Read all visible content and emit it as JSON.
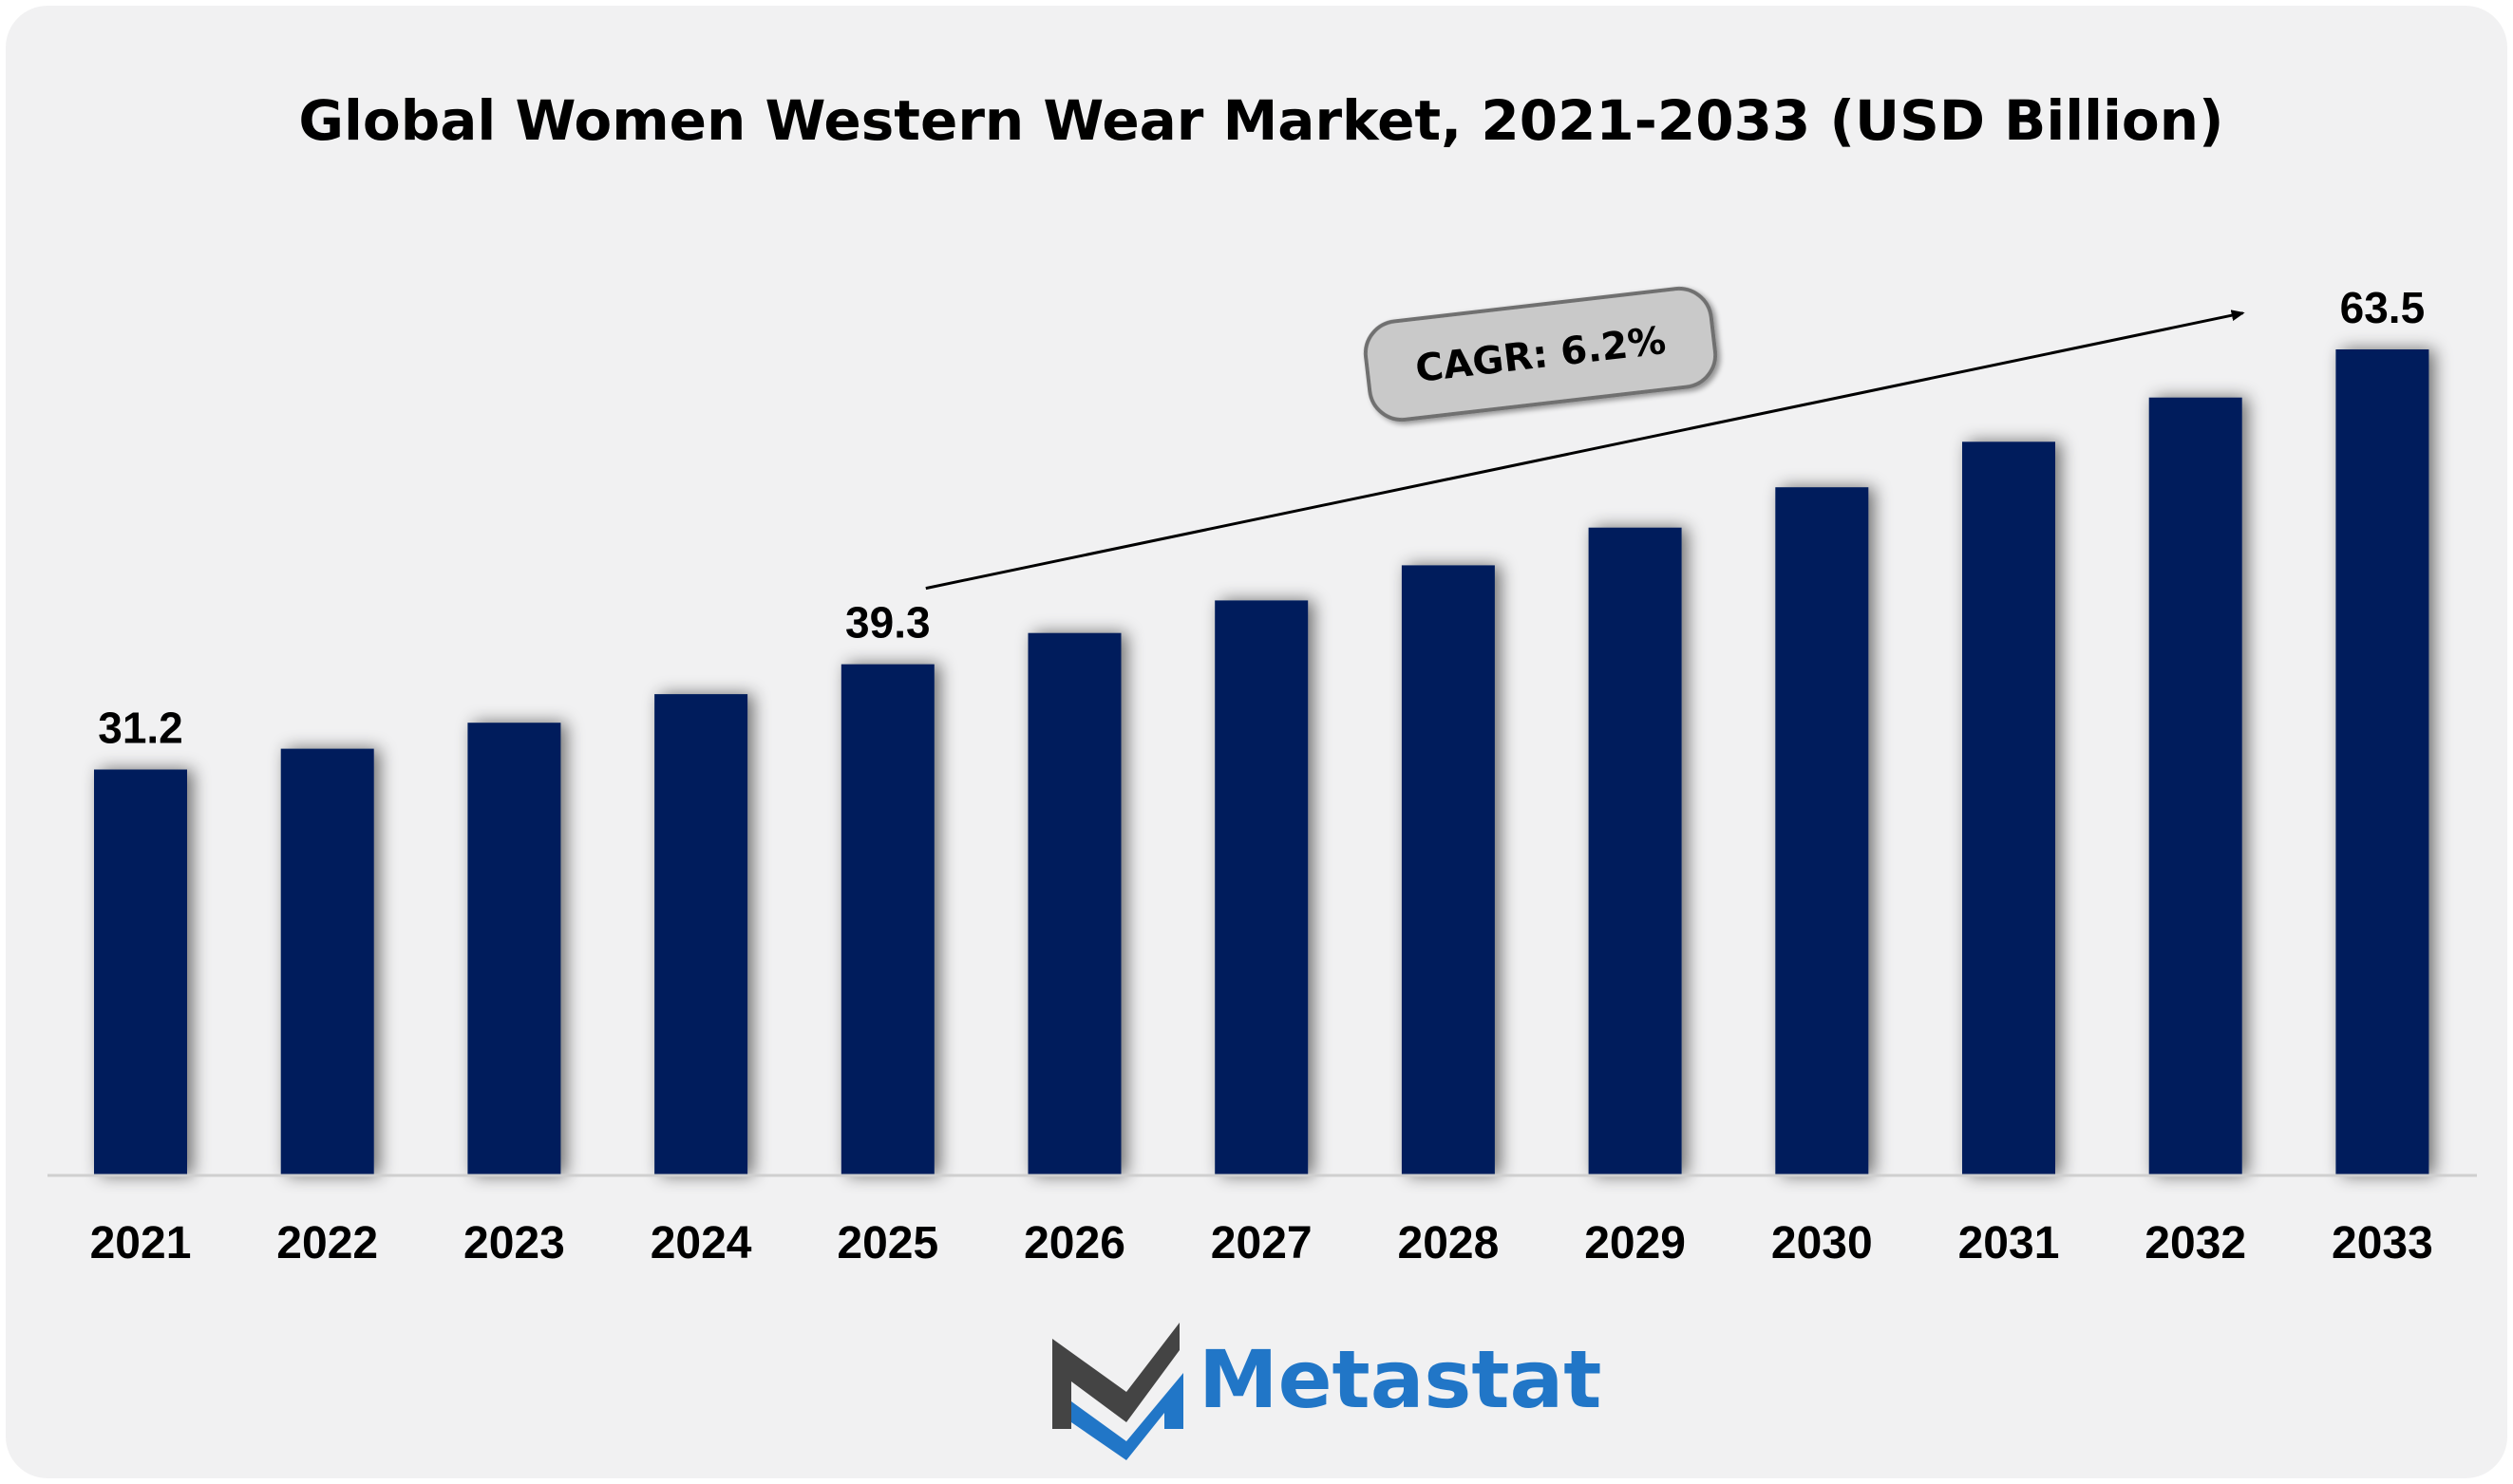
{
  "chart_data": {
    "type": "bar",
    "title": "Global Women Western Wear Market, 2021-2033 (USD Billion)",
    "xlabel": "",
    "ylabel": "",
    "categories": [
      "2021",
      "2022",
      "2023",
      "2024",
      "2025",
      "2026",
      "2027",
      "2028",
      "2029",
      "2030",
      "2031",
      "2032",
      "2033"
    ],
    "values": [
      31.2,
      32.8,
      34.8,
      37.0,
      39.3,
      41.7,
      44.2,
      46.9,
      49.8,
      52.9,
      56.4,
      59.8,
      63.5
    ],
    "data_labels": {
      "2021": "31.2",
      "2025": "39.3",
      "2033": "63.5"
    },
    "ylim": [
      0,
      63.5
    ],
    "grid": false,
    "bar_color": "#021f5c",
    "annotation": {
      "label": "CAGR: 6.2%",
      "from_category": "2025",
      "to_category": "2032"
    }
  },
  "branding": {
    "name": "Metastat",
    "color": "#2176c7",
    "logo_icon": "metastat-m-logo-icon"
  }
}
